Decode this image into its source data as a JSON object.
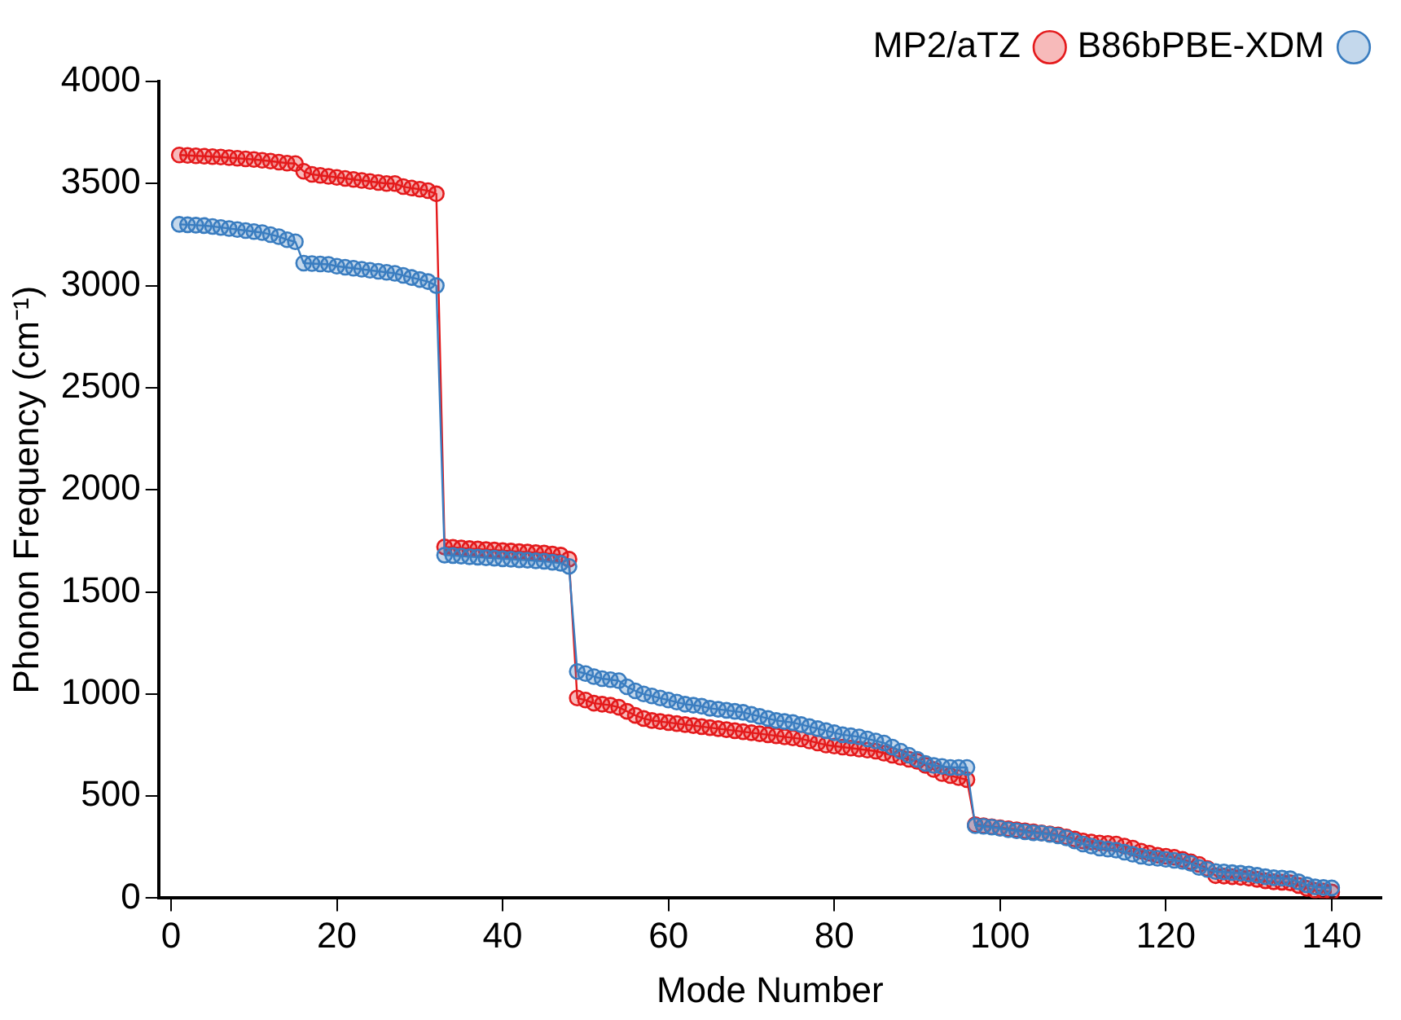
{
  "chart_data": {
    "type": "line",
    "xlabel": "Mode Number",
    "ylabel": "Phonon Frequency (cm⁻¹)",
    "x": [
      1,
      2,
      3,
      4,
      5,
      6,
      7,
      8,
      9,
      10,
      11,
      12,
      13,
      14,
      15,
      16,
      17,
      18,
      19,
      20,
      21,
      22,
      23,
      24,
      25,
      26,
      27,
      28,
      29,
      30,
      31,
      32,
      33,
      34,
      35,
      36,
      37,
      38,
      39,
      40,
      41,
      42,
      43,
      44,
      45,
      46,
      47,
      48,
      49,
      50,
      51,
      52,
      53,
      54,
      55,
      56,
      57,
      58,
      59,
      60,
      61,
      62,
      63,
      64,
      65,
      66,
      67,
      68,
      69,
      70,
      71,
      72,
      73,
      74,
      75,
      76,
      77,
      78,
      79,
      80,
      81,
      82,
      83,
      84,
      85,
      86,
      87,
      88,
      89,
      90,
      91,
      92,
      93,
      94,
      95,
      96,
      97,
      98,
      99,
      100,
      101,
      102,
      103,
      104,
      105,
      106,
      107,
      108,
      109,
      110,
      111,
      112,
      113,
      114,
      115,
      116,
      117,
      118,
      119,
      120,
      121,
      122,
      123,
      124,
      125,
      126,
      127,
      128,
      129,
      130,
      131,
      132,
      133,
      134,
      135,
      136,
      137,
      138,
      139,
      140
    ],
    "series": [
      {
        "name": "MP2/aTZ",
        "color": "#e41a1c",
        "values": [
          3640,
          3638,
          3636,
          3634,
          3632,
          3630,
          3627,
          3624,
          3621,
          3618,
          3614,
          3610,
          3605,
          3600,
          3598,
          3560,
          3545,
          3540,
          3535,
          3530,
          3525,
          3520,
          3515,
          3510,
          3505,
          3500,
          3500,
          3485,
          3478,
          3472,
          3465,
          3450,
          1720,
          1718,
          1715,
          1712,
          1710,
          1707,
          1705,
          1702,
          1700,
          1697,
          1695,
          1692,
          1690,
          1685,
          1680,
          1660,
          980,
          970,
          955,
          950,
          945,
          935,
          915,
          895,
          880,
          870,
          865,
          860,
          855,
          850,
          845,
          840,
          835,
          830,
          825,
          820,
          815,
          810,
          805,
          800,
          795,
          790,
          785,
          780,
          770,
          760,
          750,
          745,
          740,
          735,
          730,
          725,
          720,
          710,
          700,
          690,
          680,
          670,
          650,
          630,
          610,
          600,
          590,
          580,
          360,
          355,
          350,
          345,
          340,
          335,
          330,
          325,
          320,
          315,
          310,
          300,
          290,
          280,
          275,
          270,
          268,
          265,
          255,
          245,
          230,
          220,
          210,
          205,
          200,
          190,
          178,
          165,
          145,
          110,
          108,
          105,
          102,
          98,
          92,
          85,
          80,
          78,
          75,
          62,
          48,
          38,
          35,
          30
        ]
      },
      {
        "name": "B86bPBE-XDM",
        "color": "#3a7dc0",
        "values": [
          3300,
          3298,
          3296,
          3294,
          3290,
          3285,
          3280,
          3275,
          3270,
          3265,
          3260,
          3250,
          3240,
          3225,
          3215,
          3110,
          3108,
          3106,
          3104,
          3095,
          3090,
          3085,
          3080,
          3075,
          3070,
          3065,
          3060,
          3050,
          3040,
          3030,
          3020,
          3000,
          1680,
          1678,
          1675,
          1672,
          1670,
          1667,
          1665,
          1662,
          1660,
          1657,
          1655,
          1652,
          1650,
          1645,
          1640,
          1625,
          1110,
          1100,
          1085,
          1075,
          1070,
          1065,
          1035,
          1015,
          1000,
          990,
          980,
          970,
          960,
          950,
          945,
          940,
          930,
          925,
          920,
          915,
          910,
          900,
          890,
          880,
          870,
          865,
          860,
          850,
          840,
          830,
          820,
          810,
          800,
          795,
          790,
          780,
          770,
          760,
          740,
          720,
          700,
          680,
          660,
          650,
          645,
          640,
          640,
          640,
          355,
          352,
          348,
          342,
          335,
          330,
          325,
          320,
          318,
          312,
          305,
          295,
          280,
          265,
          255,
          245,
          240,
          235,
          225,
          215,
          205,
          198,
          195,
          190,
          185,
          180,
          170,
          150,
          140,
          130,
          128,
          125,
          122,
          118,
          112,
          105,
          100,
          98,
          95,
          80,
          65,
          55,
          52,
          50
        ]
      }
    ],
    "xlim": [
      -1.5,
      146
    ],
    "xticks": [
      0,
      20,
      40,
      60,
      80,
      100,
      120,
      140
    ],
    "ylim": [
      0,
      4000
    ],
    "yticks": [
      0,
      500,
      1000,
      1500,
      2000,
      2500,
      3000,
      3500,
      4000
    ],
    "grid": false,
    "legend": "top right",
    "marker": "circle",
    "line_style": "solid"
  }
}
